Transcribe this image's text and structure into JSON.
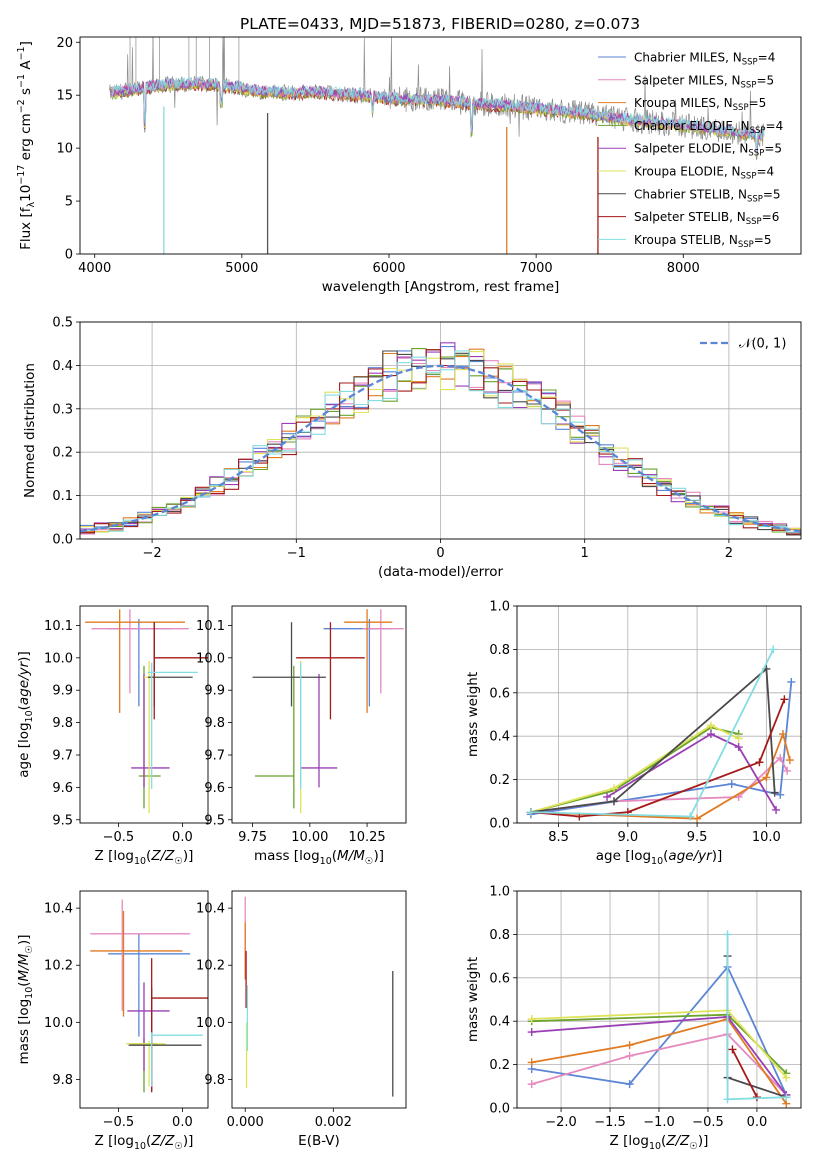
{
  "title": "PLATE=0433, MJD=51873, FIBERID=0280, z=0.073",
  "colors": {
    "Chabrier MILES": "#5b86d6",
    "Salpeter MILES": "#e58ac0",
    "Kroupa MILES": "#e07b22",
    "Chabrier ELODIE": "#6aa22c",
    "Salpeter ELODIE": "#9b3fb5",
    "Kroupa ELODIE": "#dfe35a",
    "Chabrier STELIB": "#4a4a4a",
    "Salpeter STELIB": "#a51a1a",
    "Kroupa STELIB": "#84dde0"
  },
  "chart_data": [
    {
      "id": "spectrum",
      "type": "line",
      "xlabel": "wavelength [Angstrom, rest frame]",
      "ylabel": "Flux [f_λ 10^-17 erg cm^-2 s^-1 A^-1]",
      "xlim": [
        3900,
        8800
      ],
      "ylim": [
        0,
        20.5
      ],
      "xticks": [
        4000,
        5000,
        6000,
        7000,
        8000
      ],
      "yticks": [
        0,
        5,
        10,
        15,
        20
      ],
      "legend_position": "upper-right",
      "legend": [
        {
          "label": "Chabrier MILES, N",
          "sub": "SSP",
          "tail": "=4",
          "key": "Chabrier MILES"
        },
        {
          "label": "Salpeter MILES, N",
          "sub": "SSP",
          "tail": "=5",
          "key": "Salpeter MILES"
        },
        {
          "label": "Kroupa MILES, N",
          "sub": "SSP",
          "tail": "=5",
          "key": "Kroupa MILES"
        },
        {
          "label": "Chabrier ELODIE, N",
          "sub": "SSP",
          "tail": "=4",
          "key": "Chabrier ELODIE"
        },
        {
          "label": "Salpeter ELODIE, N",
          "sub": "SSP",
          "tail": "=5",
          "key": "Salpeter ELODIE"
        },
        {
          "label": "Kroupa ELODIE, N",
          "sub": "SSP",
          "tail": "=4",
          "key": "Kroupa ELODIE"
        },
        {
          "label": "Chabrier STELIB, N",
          "sub": "SSP",
          "tail": "=5",
          "key": "Chabrier STELIB"
        },
        {
          "label": "Salpeter STELIB, N",
          "sub": "SSP",
          "tail": "=6",
          "key": "Salpeter STELIB"
        },
        {
          "label": "Kroupa STELIB, N",
          "sub": "SSP",
          "tail": "=5",
          "key": "Kroupa STELIB"
        }
      ],
      "continuum": {
        "x": [
          4100,
          4300,
          4500,
          4700,
          4900,
          5100,
          5300,
          5500,
          5700,
          5900,
          6100,
          6300,
          6500,
          6700,
          6900,
          7100,
          7300,
          7500,
          7700,
          7900,
          8100,
          8300,
          8500
        ],
        "y": [
          15.2,
          15.6,
          16.0,
          16.1,
          15.9,
          15.4,
          15.2,
          15.3,
          15.1,
          14.9,
          14.6,
          14.6,
          14.3,
          14.1,
          13.9,
          13.6,
          13.3,
          12.9,
          12.6,
          12.3,
          12.0,
          11.6,
          11.2
        ]
      },
      "absorption_lines": [
        {
          "x": 4340,
          "depth": 6.5
        },
        {
          "x": 4470,
          "depth": 16.0,
          "to_zero": true
        },
        {
          "x": 4860,
          "depth": 3.0
        },
        {
          "x": 5175,
          "depth": 15.0,
          "to_zero": true
        },
        {
          "x": 5890,
          "depth": 2.5
        },
        {
          "x": 6560,
          "depth": 5.0
        },
        {
          "x": 6800,
          "depth": 14.0,
          "to_zero": true
        },
        {
          "x": 7420,
          "depth": 13.0,
          "to_zero": true
        },
        {
          "x": 8500,
          "depth": 3.0
        }
      ]
    },
    {
      "id": "residuals",
      "type": "histogram",
      "xlabel": "(data-model)/error",
      "ylabel": "Normed distribution",
      "xlim": [
        -2.5,
        2.5
      ],
      "ylim": [
        0,
        0.5
      ],
      "xticks": [
        -2,
        -1,
        0,
        1,
        2
      ],
      "yticks": [
        0.0,
        0.1,
        0.2,
        0.3,
        0.4,
        0.5
      ],
      "grid": true,
      "legend_position": "upper-right",
      "legend": [
        {
          "label": "𝒩(0, 1)",
          "style": "dashed",
          "color": "#5b86d6"
        }
      ],
      "bin_width": 0.1,
      "bin_start": -2.5
    },
    {
      "id": "age_vs_Z",
      "type": "errorbar",
      "xlabel": "Z [log10(Z/Z☉)]",
      "ylabel": "age [log10(age/yr)]",
      "xlim": [
        -0.8,
        0.2
      ],
      "ylim": [
        9.49,
        10.16
      ],
      "xticks": [
        -0.5,
        0.0
      ],
      "yticks": [
        9.5,
        9.6,
        9.7,
        9.8,
        9.9,
        10.0,
        10.1
      ],
      "points": [
        {
          "key": "Chabrier MILES",
          "x": -0.34,
          "xerr": [
            0.24,
            0.25
          ],
          "y": 10.09,
          "yerr": [
            0.24,
            0.03
          ]
        },
        {
          "key": "Salpeter MILES",
          "x": -0.41,
          "xerr": [
            0.3,
            0.46
          ],
          "y": 10.09,
          "yerr": [
            0.2,
            0.06
          ]
        },
        {
          "key": "Kroupa MILES",
          "x": -0.49,
          "xerr": [
            0.27,
            0.51
          ],
          "y": 10.11,
          "yerr": [
            0.28,
            0.04
          ]
        },
        {
          "key": "Chabrier ELODIE",
          "x": -0.3,
          "xerr": [
            0.04,
            0.13
          ],
          "y": 9.635,
          "yerr": [
            0.1,
            0.34
          ]
        },
        {
          "key": "Salpeter ELODIE",
          "x": -0.3,
          "xerr": [
            0.1,
            0.2
          ],
          "y": 9.66,
          "yerr": [
            0.06,
            0.29
          ]
        },
        {
          "key": "Kroupa ELODIE",
          "x": -0.26,
          "xerr": [
            0.04,
            0.1
          ],
          "y": 9.94,
          "yerr": [
            0.42,
            0.05
          ]
        },
        {
          "key": "Chabrier STELIB",
          "x": -0.22,
          "xerr": [
            0.05,
            0.3
          ],
          "y": 9.94,
          "yerr": [
            0.09,
            0.17
          ]
        },
        {
          "key": "Salpeter STELIB",
          "x": -0.22,
          "xerr": [
            0.0,
            0.43
          ],
          "y": 10.0,
          "yerr": [
            0.19,
            0.11
          ]
        },
        {
          "key": "Kroupa STELIB",
          "x": -0.24,
          "xerr": [
            0.03,
            0.36
          ],
          "y": 9.955,
          "yerr": [
            0.36,
            0.03
          ]
        }
      ]
    },
    {
      "id": "age_vs_mass",
      "type": "errorbar",
      "xlabel": "mass [log10(M/M☉)]",
      "xlim": [
        9.66,
        10.42
      ],
      "ylim": [
        9.49,
        10.16
      ],
      "xticks": [
        9.75,
        10.0,
        10.25
      ],
      "yticks": [
        9.5,
        9.6,
        9.7,
        9.8,
        9.9,
        10.0,
        10.1
      ],
      "points": [
        {
          "key": "Chabrier MILES",
          "x": 10.26,
          "xerr": [
            0.2,
            0.1
          ],
          "y": 10.09,
          "yerr": [
            0.24,
            0.03
          ]
        },
        {
          "key": "Salpeter MILES",
          "x": 10.31,
          "xerr": [
            0.08,
            0.1
          ],
          "y": 10.09,
          "yerr": [
            0.2,
            0.06
          ]
        },
        {
          "key": "Kroupa MILES",
          "x": 10.25,
          "xerr": [
            0.1,
            0.11
          ],
          "y": 10.11,
          "yerr": [
            0.28,
            0.04
          ]
        },
        {
          "key": "Chabrier ELODIE",
          "x": 9.93,
          "xerr": [
            0.17,
            0.0
          ],
          "y": 9.635,
          "yerr": [
            0.1,
            0.34
          ]
        },
        {
          "key": "Salpeter ELODIE",
          "x": 10.04,
          "xerr": [
            0.08,
            0.08
          ],
          "y": 9.66,
          "yerr": [
            0.06,
            0.29
          ]
        },
        {
          "key": "Kroupa ELODIE",
          "x": 9.96,
          "xerr": [
            0.0,
            0.0
          ],
          "y": 9.94,
          "yerr": [
            0.42,
            0.05
          ]
        },
        {
          "key": "Chabrier STELIB",
          "x": 9.92,
          "xerr": [
            0.17,
            0.15
          ],
          "y": 9.94,
          "yerr": [
            0.09,
            0.17
          ]
        },
        {
          "key": "Salpeter STELIB",
          "x": 10.09,
          "xerr": [
            0.15,
            0.15
          ],
          "y": 10.0,
          "yerr": [
            0.19,
            0.11
          ]
        },
        {
          "key": "Kroupa STELIB",
          "x": 9.96,
          "xerr": [
            0.0,
            0.0
          ],
          "y": 9.955,
          "yerr": [
            0.36,
            0.03
          ]
        }
      ]
    },
    {
      "id": "weight_vs_age",
      "type": "line",
      "xlabel": "age [log10(age/yr)]",
      "ylabel": "mass weight",
      "xlim": [
        8.2,
        10.25
      ],
      "ylim": [
        0,
        1.0
      ],
      "xticks": [
        8.5,
        9.0,
        9.5,
        10.0
      ],
      "yticks": [
        0.0,
        0.2,
        0.4,
        0.6,
        0.8,
        1.0
      ],
      "grid": true,
      "series": [
        {
          "key": "Chabrier MILES",
          "x": [
            8.3,
            9.75,
            10.1,
            10.18
          ],
          "y": [
            0.04,
            0.18,
            0.13,
            0.65
          ]
        },
        {
          "key": "Salpeter MILES",
          "x": [
            8.3,
            8.9,
            9.8,
            10.1,
            10.15
          ],
          "y": [
            0.05,
            0.1,
            0.12,
            0.3,
            0.24
          ]
        },
        {
          "key": "Kroupa MILES",
          "x": [
            8.3,
            9.5,
            10.0,
            10.12,
            10.17
          ],
          "y": [
            0.05,
            0.02,
            0.21,
            0.41,
            0.29
          ]
        },
        {
          "key": "Chabrier ELODIE",
          "x": [
            8.3,
            8.9,
            9.6,
            9.8
          ],
          "y": [
            0.05,
            0.15,
            0.44,
            0.41
          ]
        },
        {
          "key": "Salpeter ELODIE",
          "x": [
            8.85,
            9.6,
            9.8,
            10.07
          ],
          "y": [
            0.12,
            0.41,
            0.35,
            0.06
          ]
        },
        {
          "key": "Kroupa ELODIE",
          "x": [
            8.3,
            8.9,
            9.6,
            9.8
          ],
          "y": [
            0.05,
            0.16,
            0.45,
            0.39
          ]
        },
        {
          "key": "Chabrier STELIB",
          "x": [
            8.3,
            8.9,
            10.0,
            10.06
          ],
          "y": [
            0.05,
            0.1,
            0.71,
            0.14
          ]
        },
        {
          "key": "Salpeter STELIB",
          "x": [
            8.3,
            8.65,
            9.0,
            9.95,
            10.13
          ],
          "y": [
            0.05,
            0.03,
            0.05,
            0.28,
            0.57
          ]
        },
        {
          "key": "Kroupa STELIB",
          "x": [
            8.3,
            9.45,
            10.05
          ],
          "y": [
            0.05,
            0.03,
            0.8
          ]
        }
      ]
    },
    {
      "id": "mass_vs_Z",
      "type": "errorbar",
      "xlabel": "Z [log10(Z/Z☉)]",
      "ylabel": "mass [log10(M/M☉)]",
      "xlim": [
        -0.8,
        0.2
      ],
      "ylim": [
        9.7,
        10.46
      ],
      "xticks": [
        -0.5,
        0.0
      ],
      "yticks": [
        9.8,
        10.0,
        10.2,
        10.4
      ],
      "points": [
        {
          "key": "Chabrier MILES",
          "x": -0.34,
          "xerr": [
            0.24,
            0.4
          ],
          "y": 10.24,
          "yerr": [
            0.29,
            0.07
          ]
        },
        {
          "key": "Salpeter MILES",
          "x": -0.47,
          "xerr": [
            0.25,
            0.53
          ],
          "y": 10.31,
          "yerr": [
            0.27,
            0.12
          ]
        },
        {
          "key": "Kroupa MILES",
          "x": -0.46,
          "xerr": [
            0.26,
            0.46
          ],
          "y": 10.25,
          "yerr": [
            0.23,
            0.14
          ]
        },
        {
          "key": "Chabrier ELODIE",
          "x": -0.3,
          "xerr": [
            0.1,
            0.1
          ],
          "y": 9.925,
          "yerr": [
            0.17,
            0.02
          ]
        },
        {
          "key": "Salpeter ELODIE",
          "x": -0.3,
          "xerr": [
            0.13,
            0.2
          ],
          "y": 10.04,
          "yerr": [
            0.21,
            0.1
          ]
        },
        {
          "key": "Kroupa ELODIE",
          "x": -0.26,
          "xerr": [
            0.18,
            0.13
          ],
          "y": 9.925,
          "yerr": [
            0.15,
            0.01
          ]
        },
        {
          "key": "Chabrier STELIB",
          "x": -0.24,
          "xerr": [
            0.18,
            0.39
          ],
          "y": 9.92,
          "yerr": [
            0.16,
            0.2
          ]
        },
        {
          "key": "Salpeter STELIB",
          "x": -0.24,
          "xerr": [
            0.0,
            0.44
          ],
          "y": 10.085,
          "yerr": [
            0.33,
            0.14
          ]
        },
        {
          "key": "Kroupa STELIB",
          "x": -0.24,
          "xerr": [
            0.0,
            0.4
          ],
          "y": 9.955,
          "yerr": [
            0.18,
            0.01
          ]
        }
      ]
    },
    {
      "id": "mass_vs_EBV",
      "type": "errorbar",
      "xlabel": "E(B-V)",
      "xlim": [
        -0.0003,
        0.00365
      ],
      "ylim": [
        9.7,
        10.46
      ],
      "xticks": [
        0.0,
        0.002
      ],
      "yticks": [
        9.8,
        10.0,
        10.2,
        10.4
      ],
      "points": [
        {
          "key": "Salpeter MILES",
          "x": 0.0,
          "xerr": [
            0,
            0
          ],
          "y": 10.25,
          "yerr": [
            0.1,
            0.19
          ]
        },
        {
          "key": "Kroupa MILES",
          "x": 0.0,
          "xerr": [
            0,
            0
          ],
          "y": 10.25,
          "yerr": [
            0.1,
            0.1
          ]
        },
        {
          "key": "Salpeter STELIB",
          "x": 2e-05,
          "xerr": [
            0,
            0
          ],
          "y": 10.15,
          "yerr": [
            0.1,
            0.1
          ]
        },
        {
          "key": "Kroupa ELODIE",
          "x": 3e-05,
          "xerr": [
            0,
            0
          ],
          "y": 9.92,
          "yerr": [
            0.15,
            0.08
          ]
        },
        {
          "key": "Kroupa STELIB",
          "x": 5e-05,
          "xerr": [
            0,
            0
          ],
          "y": 10.0,
          "yerr": [
            0.1,
            0.13
          ]
        },
        {
          "key": "Chabrier STELIB",
          "x": 0.00335,
          "xerr": [
            0,
            0
          ],
          "y": 9.96,
          "yerr": [
            0.22,
            0.22
          ]
        }
      ]
    },
    {
      "id": "weight_vs_Z",
      "type": "line",
      "xlabel": "Z [log10(Z/Z☉)]",
      "ylabel": "mass weight",
      "xlim": [
        -2.45,
        0.45
      ],
      "ylim": [
        0,
        1.0
      ],
      "xticks": [
        -2.0,
        -1.5,
        -1.0,
        -0.5,
        0.0
      ],
      "yticks": [
        0.0,
        0.2,
        0.4,
        0.6,
        0.8,
        1.0
      ],
      "grid": true,
      "series": [
        {
          "key": "Chabrier MILES",
          "x": [
            -2.3,
            -1.3,
            -0.3,
            0.3
          ],
          "y": [
            0.18,
            0.11,
            0.65,
            0.06
          ]
        },
        {
          "key": "Salpeter MILES",
          "x": [
            -2.3,
            -1.3,
            -0.3,
            0.3
          ],
          "y": [
            0.11,
            0.24,
            0.34,
            0.06
          ]
        },
        {
          "key": "Kroupa MILES",
          "x": [
            -2.3,
            -1.3,
            -0.3,
            0.3
          ],
          "y": [
            0.21,
            0.29,
            0.41,
            0.02
          ]
        },
        {
          "key": "Chabrier ELODIE",
          "x": [
            -2.3,
            -0.3,
            0.3
          ],
          "y": [
            0.4,
            0.43,
            0.16
          ]
        },
        {
          "key": "Salpeter ELODIE",
          "x": [
            -2.3,
            -0.3,
            0.3
          ],
          "y": [
            0.35,
            0.42,
            0.06
          ]
        },
        {
          "key": "Kroupa ELODIE",
          "x": [
            -2.3,
            -0.3,
            0.3
          ],
          "y": [
            0.41,
            0.45,
            0.14
          ]
        },
        {
          "key": "Chabrier STELIB",
          "x": [
            -0.3,
            -0.3,
            0.3
          ],
          "y": [
            0.7,
            0.14,
            0.05
          ]
        },
        {
          "key": "Salpeter STELIB",
          "x": [
            -0.25,
            0.0
          ],
          "y": [
            0.27,
            0.05
          ]
        },
        {
          "key": "Kroupa STELIB",
          "x": [
            -0.3,
            -0.3,
            0.3
          ],
          "y": [
            0.8,
            0.04,
            0.05
          ]
        }
      ]
    }
  ]
}
